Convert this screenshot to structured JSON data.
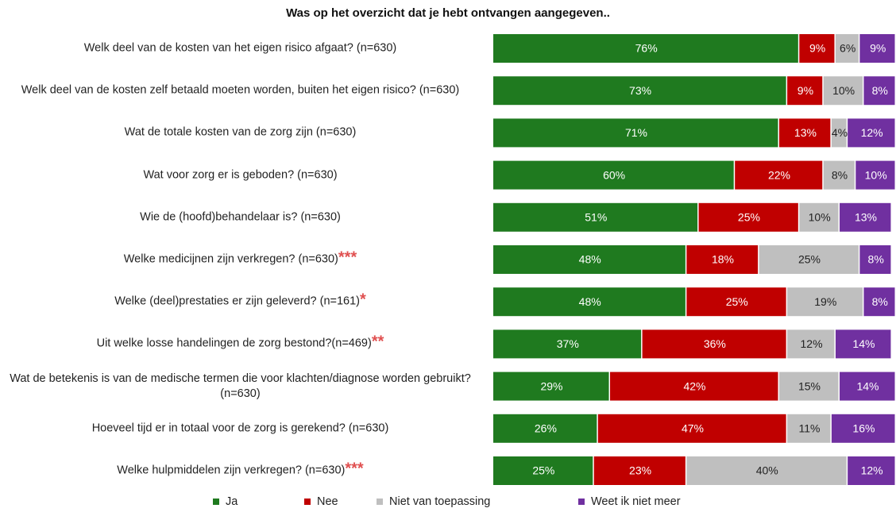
{
  "chart_data": {
    "type": "stacked_bar_horizontal",
    "title": "Was op het overzicht dat je hebt ontvangen aangegeven..",
    "categories": [
      "Welk deel van de kosten van het eigen risico afgaat? (n=630)",
      "Welk deel van de kosten zelf betaald moeten worden, buiten het eigen risico? (n=630)",
      "Wat de totale kosten van de zorg zijn (n=630)",
      "Wat voor zorg er is geboden? (n=630)",
      "Wie de (hoofd)behandelaar is? (n=630)",
      "Welke medicijnen zijn verkregen?  (n=630)",
      "Welke (deel)prestaties er zijn geleverd? (n=161)",
      "Uit welke losse handelingen de zorg bestond?(n=469)",
      "Wat de betekenis is van de medische termen die voor klachten/diagnose worden gebruikt? (n=630)",
      "Hoeveel tijd er in totaal voor de zorg is gerekend? (n=630)",
      "Welke hulpmiddelen zijn verkregen? (n=630)"
    ],
    "category_marks": [
      null,
      null,
      null,
      null,
      null,
      "***",
      "*",
      "**",
      null,
      null,
      "***"
    ],
    "xlim": [
      0,
      100
    ],
    "series": [
      {
        "name": "Ja",
        "color": "#1f7a1f",
        "text_color": "#ffffff",
        "values": [
          76,
          73,
          71,
          60,
          51,
          48,
          48,
          37,
          29,
          26,
          25
        ],
        "value_labels": [
          "76%",
          "73%",
          "71%",
          "60%",
          "51%",
          "48%",
          "48%",
          "37%",
          "29%",
          "26%",
          "25%"
        ]
      },
      {
        "name": "Nee",
        "color": "#c00000",
        "text_color": "#ffffff",
        "values": [
          9,
          9,
          13,
          22,
          25,
          18,
          25,
          36,
          42,
          47,
          23
        ],
        "value_labels": [
          "9%",
          "9%",
          "13%",
          "22%",
          "25%",
          "18%",
          "25%",
          "36%",
          "42%",
          "47%",
          "23%"
        ]
      },
      {
        "name": "Niet van toepassing",
        "color": "#bfbfbf",
        "text_color": "#222222",
        "values": [
          6,
          10,
          4,
          8,
          10,
          25,
          19,
          12,
          15,
          11,
          40
        ],
        "value_labels": [
          "6%",
          "10%",
          "4%",
          "8%",
          "10%",
          "25%",
          "19%",
          "12%",
          "15%",
          "11%",
          "40%"
        ]
      },
      {
        "name": "Weet ik niet meer",
        "color": "#7030a0",
        "text_color": "#ffffff",
        "values": [
          9,
          8,
          12,
          10,
          13,
          8,
          8,
          14,
          14,
          16,
          12
        ],
        "value_labels": [
          "9%",
          "8%",
          "12%",
          "10%",
          "13%",
          "8%",
          "8%",
          "14%",
          "14%",
          "16%",
          "12%"
        ]
      }
    ],
    "legend": "bottom"
  }
}
